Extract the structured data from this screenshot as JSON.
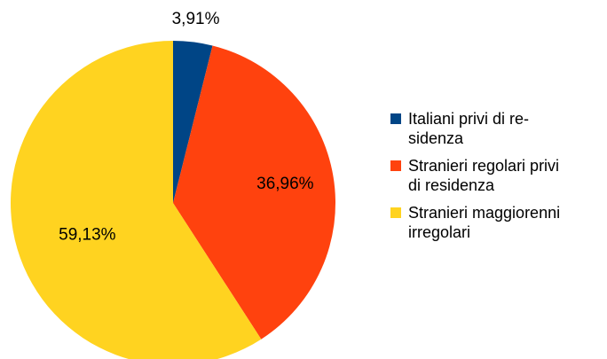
{
  "chart_data": {
    "type": "pie",
    "title": "",
    "categories": [
      [
        "Italiani privi di re-",
        "sidenza"
      ],
      [
        "Stranieri regolari privi",
        "di residenza"
      ],
      [
        "Stranieri maggiorenni",
        "irregolari"
      ]
    ],
    "values": [
      3.91,
      36.96,
      59.13
    ],
    "data_labels": [
      "3,91%",
      "36,96%",
      "59,13%"
    ],
    "colors": [
      "#004586",
      "#FF420E",
      "#FFD320"
    ],
    "start_angle_deg": 0,
    "direction": "clockwise",
    "legend_position": "right"
  }
}
